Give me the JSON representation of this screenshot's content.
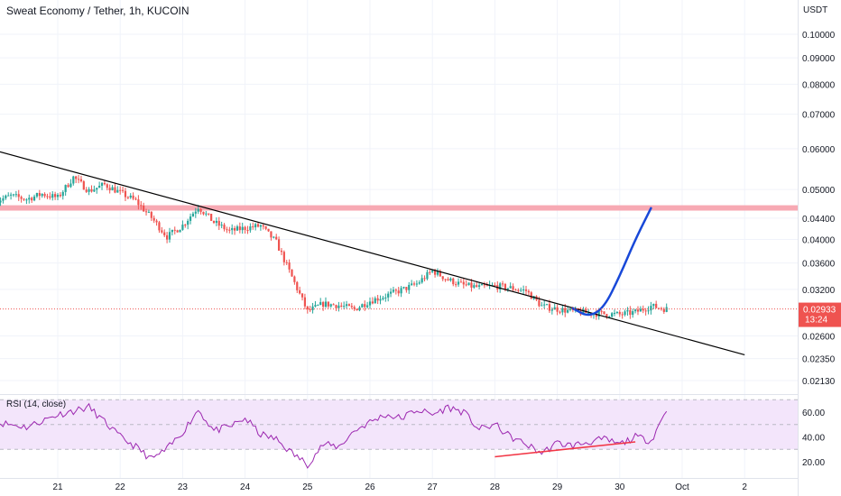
{
  "chart_title": "Sweat Economy / Tether, 1h, KUCOIN",
  "currency_label": "USDT",
  "last_price": {
    "value": "0.02933",
    "countdown": "13:24"
  },
  "price_axis": {
    "scale": "log",
    "ticks": [
      "0.10000",
      "0.09000",
      "0.08000",
      "0.07000",
      "0.06000",
      "0.05000",
      "0.04400",
      "0.04000",
      "0.03600",
      "0.03200",
      "0.02600",
      "0.02350",
      "0.02130"
    ]
  },
  "time_axis": {
    "ticks": [
      "21",
      "22",
      "23",
      "24",
      "25",
      "26",
      "27",
      "28",
      "29",
      "30",
      "Oct",
      "2"
    ]
  },
  "rsi": {
    "label": "RSI (14, close)",
    "ticks": [
      "60.00",
      "40.00",
      "20.00"
    ]
  },
  "colors": {
    "up": "#26a69a",
    "down": "#ef5350",
    "resistance_zone": "#f7a9b3",
    "trendline": "#000000",
    "projection": "#1848d8",
    "rsi_line": "#9c27b0",
    "rsi_band": "#f3e5fb",
    "rsi_divergence": "#f23645",
    "price_label": "#ef5350"
  },
  "chart_data": {
    "type": "candlestick",
    "interval": "1h",
    "x_range": [
      "2023-09-20",
      "2023-10-02"
    ],
    "y_range": [
      0.0208,
      0.103
    ],
    "close_path": [
      [
        "2023-09-20 00:00",
        0.0474
      ],
      [
        "2023-09-20 06:00",
        0.0486
      ],
      [
        "2023-09-20 12:00",
        0.0479
      ],
      [
        "2023-09-20 18:00",
        0.049
      ],
      [
        "2023-09-21 00:00",
        0.0482
      ],
      [
        "2023-09-21 06:00",
        0.0528
      ],
      [
        "2023-09-21 12:00",
        0.0497
      ],
      [
        "2023-09-21 18:00",
        0.0511
      ],
      [
        "2023-09-22 00:00",
        0.0493
      ],
      [
        "2023-09-22 06:00",
        0.0475
      ],
      [
        "2023-09-22 12:00",
        0.0441
      ],
      [
        "2023-09-22 18:00",
        0.0405
      ],
      [
        "2023-09-23 00:00",
        0.0426
      ],
      [
        "2023-09-23 06:00",
        0.0463
      ],
      [
        "2023-09-23 12:00",
        0.0432
      ],
      [
        "2023-09-23 18:00",
        0.0415
      ],
      [
        "2023-09-24 00:00",
        0.0421
      ],
      [
        "2023-09-24 06:00",
        0.0425
      ],
      [
        "2023-09-24 12:00",
        0.0395
      ],
      [
        "2023-09-24 18:00",
        0.0338
      ],
      [
        "2023-09-25 00:00",
        0.029
      ],
      [
        "2023-09-25 06:00",
        0.03
      ],
      [
        "2023-09-25 12:00",
        0.0298
      ],
      [
        "2023-09-25 18:00",
        0.0293
      ],
      [
        "2023-09-26 00:00",
        0.0304
      ],
      [
        "2023-09-26 06:00",
        0.0311
      ],
      [
        "2023-09-26 12:00",
        0.0319
      ],
      [
        "2023-09-26 18:00",
        0.0328
      ],
      [
        "2023-09-27 00:00",
        0.0348
      ],
      [
        "2023-09-27 06:00",
        0.0334
      ],
      [
        "2023-09-27 12:00",
        0.0326
      ],
      [
        "2023-09-27 18:00",
        0.0323
      ],
      [
        "2023-09-28 00:00",
        0.0325
      ],
      [
        "2023-09-28 06:00",
        0.0322
      ],
      [
        "2023-09-28 12:00",
        0.0318
      ],
      [
        "2023-09-28 18:00",
        0.0297
      ],
      [
        "2023-09-29 00:00",
        0.0293
      ],
      [
        "2023-09-29 06:00",
        0.029
      ],
      [
        "2023-09-29 12:00",
        0.0288
      ],
      [
        "2023-09-29 18:00",
        0.0287
      ],
      [
        "2023-09-30 00:00",
        0.0286
      ],
      [
        "2023-09-30 06:00",
        0.0289
      ],
      [
        "2023-09-30 12:00",
        0.0297
      ],
      [
        "2023-09-30 18:00",
        0.0293
      ]
    ],
    "resistance_zone": {
      "price_range": [
        0.0455,
        0.0466
      ]
    },
    "trendline": {
      "from": [
        "2023-09-20 00:00",
        0.0595
      ],
      "to": [
        "2023-10-02 00:00",
        0.0239
      ]
    },
    "projection_path": [
      [
        "2023-09-29 06:00",
        0.0294
      ],
      [
        "2023-09-29 12:00",
        0.0283
      ],
      [
        "2023-09-29 18:00",
        0.0295
      ],
      [
        "2023-09-30 00:00",
        0.034
      ],
      [
        "2023-09-30 06:00",
        0.04
      ],
      [
        "2023-09-30 12:00",
        0.046
      ]
    ],
    "current_price_line": 0.02933,
    "rsi_series": {
      "name": "RSI (14, close)",
      "y_range": [
        10,
        80
      ],
      "band": [
        30,
        70
      ],
      "values": [
        [
          "2023-09-20 00:00",
          52
        ],
        [
          "2023-09-20 12:00",
          48
        ],
        [
          "2023-09-21 00:00",
          58
        ],
        [
          "2023-09-21 12:00",
          64
        ],
        [
          "2023-09-22 00:00",
          40
        ],
        [
          "2023-09-22 06:00",
          32
        ],
        [
          "2023-09-22 12:00",
          22
        ],
        [
          "2023-09-22 18:00",
          30
        ],
        [
          "2023-09-23 00:00",
          44
        ],
        [
          "2023-09-23 06:00",
          62
        ],
        [
          "2023-09-23 12:00",
          45
        ],
        [
          "2023-09-23 18:00",
          48
        ],
        [
          "2023-09-24 00:00",
          55
        ],
        [
          "2023-09-24 06:00",
          42
        ],
        [
          "2023-09-24 12:00",
          38
        ],
        [
          "2023-09-24 18:00",
          27
        ],
        [
          "2023-09-25 00:00",
          18
        ],
        [
          "2023-09-25 06:00",
          34
        ],
        [
          "2023-09-25 12:00",
          32
        ],
        [
          "2023-09-25 18:00",
          45
        ],
        [
          "2023-09-26 00:00",
          52
        ],
        [
          "2023-09-26 06:00",
          58
        ],
        [
          "2023-09-26 12:00",
          55
        ],
        [
          "2023-09-26 18:00",
          62
        ],
        [
          "2023-09-27 00:00",
          58
        ],
        [
          "2023-09-27 06:00",
          64
        ],
        [
          "2023-09-27 12:00",
          60
        ],
        [
          "2023-09-27 18:00",
          46
        ],
        [
          "2023-09-28 00:00",
          50
        ],
        [
          "2023-09-28 06:00",
          40
        ],
        [
          "2023-09-28 12:00",
          34
        ],
        [
          "2023-09-28 18:00",
          27
        ],
        [
          "2023-09-29 00:00",
          35
        ],
        [
          "2023-09-29 06:00",
          33
        ],
        [
          "2023-09-29 12:00",
          36
        ],
        [
          "2023-09-29 18:00",
          38
        ],
        [
          "2023-09-30 00:00",
          34
        ],
        [
          "2023-09-30 06:00",
          40
        ],
        [
          "2023-09-30 12:00",
          37
        ],
        [
          "2023-09-30 18:00",
          62
        ]
      ]
    },
    "rsi_divergence": {
      "from": [
        "2023-09-28 00:00",
        24
      ],
      "to": [
        "2023-09-30 06:00",
        36
      ]
    }
  }
}
